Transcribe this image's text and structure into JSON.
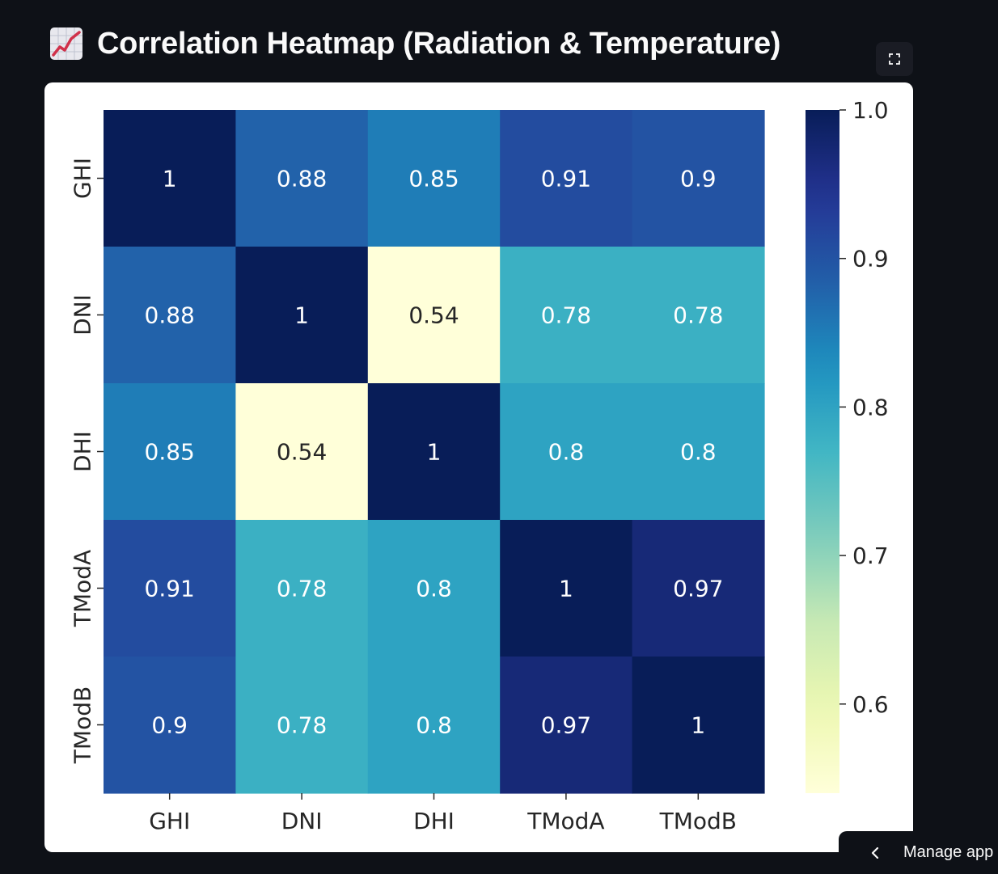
{
  "header": {
    "title": "Correlation Heatmap (Radiation & Temperature)",
    "icon": "chart-increasing-icon"
  },
  "toolbar": {
    "fullscreen_icon": "fullscreen-icon"
  },
  "footer": {
    "manage_label": "Manage app",
    "chevron_icon": "chevron-left-icon"
  },
  "chart_data": {
    "type": "heatmap",
    "title": "",
    "xlabel": "",
    "ylabel": "",
    "rows": [
      "GHI",
      "DNI",
      "DHI",
      "TModA",
      "TModB"
    ],
    "cols": [
      "GHI",
      "DNI",
      "DHI",
      "TModA",
      "TModB"
    ],
    "values": [
      [
        1,
        0.88,
        0.85,
        0.91,
        0.9
      ],
      [
        0.88,
        1,
        0.54,
        0.78,
        0.78
      ],
      [
        0.85,
        0.54,
        1,
        0.8,
        0.8
      ],
      [
        0.91,
        0.78,
        0.8,
        1,
        0.97
      ],
      [
        0.9,
        0.78,
        0.8,
        0.97,
        1
      ]
    ],
    "annotations": [
      [
        "1",
        "0.88",
        "0.85",
        "0.91",
        "0.9"
      ],
      [
        "0.88",
        "1",
        "0.54",
        "0.78",
        "0.78"
      ],
      [
        "0.85",
        "0.54",
        "1",
        "0.8",
        "0.8"
      ],
      [
        "0.91",
        "0.78",
        "0.8",
        "1",
        "0.97"
      ],
      [
        "0.9",
        "0.78",
        "0.8",
        "0.97",
        "1"
      ]
    ],
    "colormap": "YlGnBu",
    "vmin": 0.54,
    "vmax": 1.0,
    "colorbar_ticks": [
      0.6,
      0.7,
      0.8,
      0.9,
      1.0
    ],
    "colorbar_tick_labels": [
      "0.6",
      "0.7",
      "0.8",
      "0.9",
      "1.0"
    ],
    "grid": false,
    "legend": "colorbar-right"
  }
}
